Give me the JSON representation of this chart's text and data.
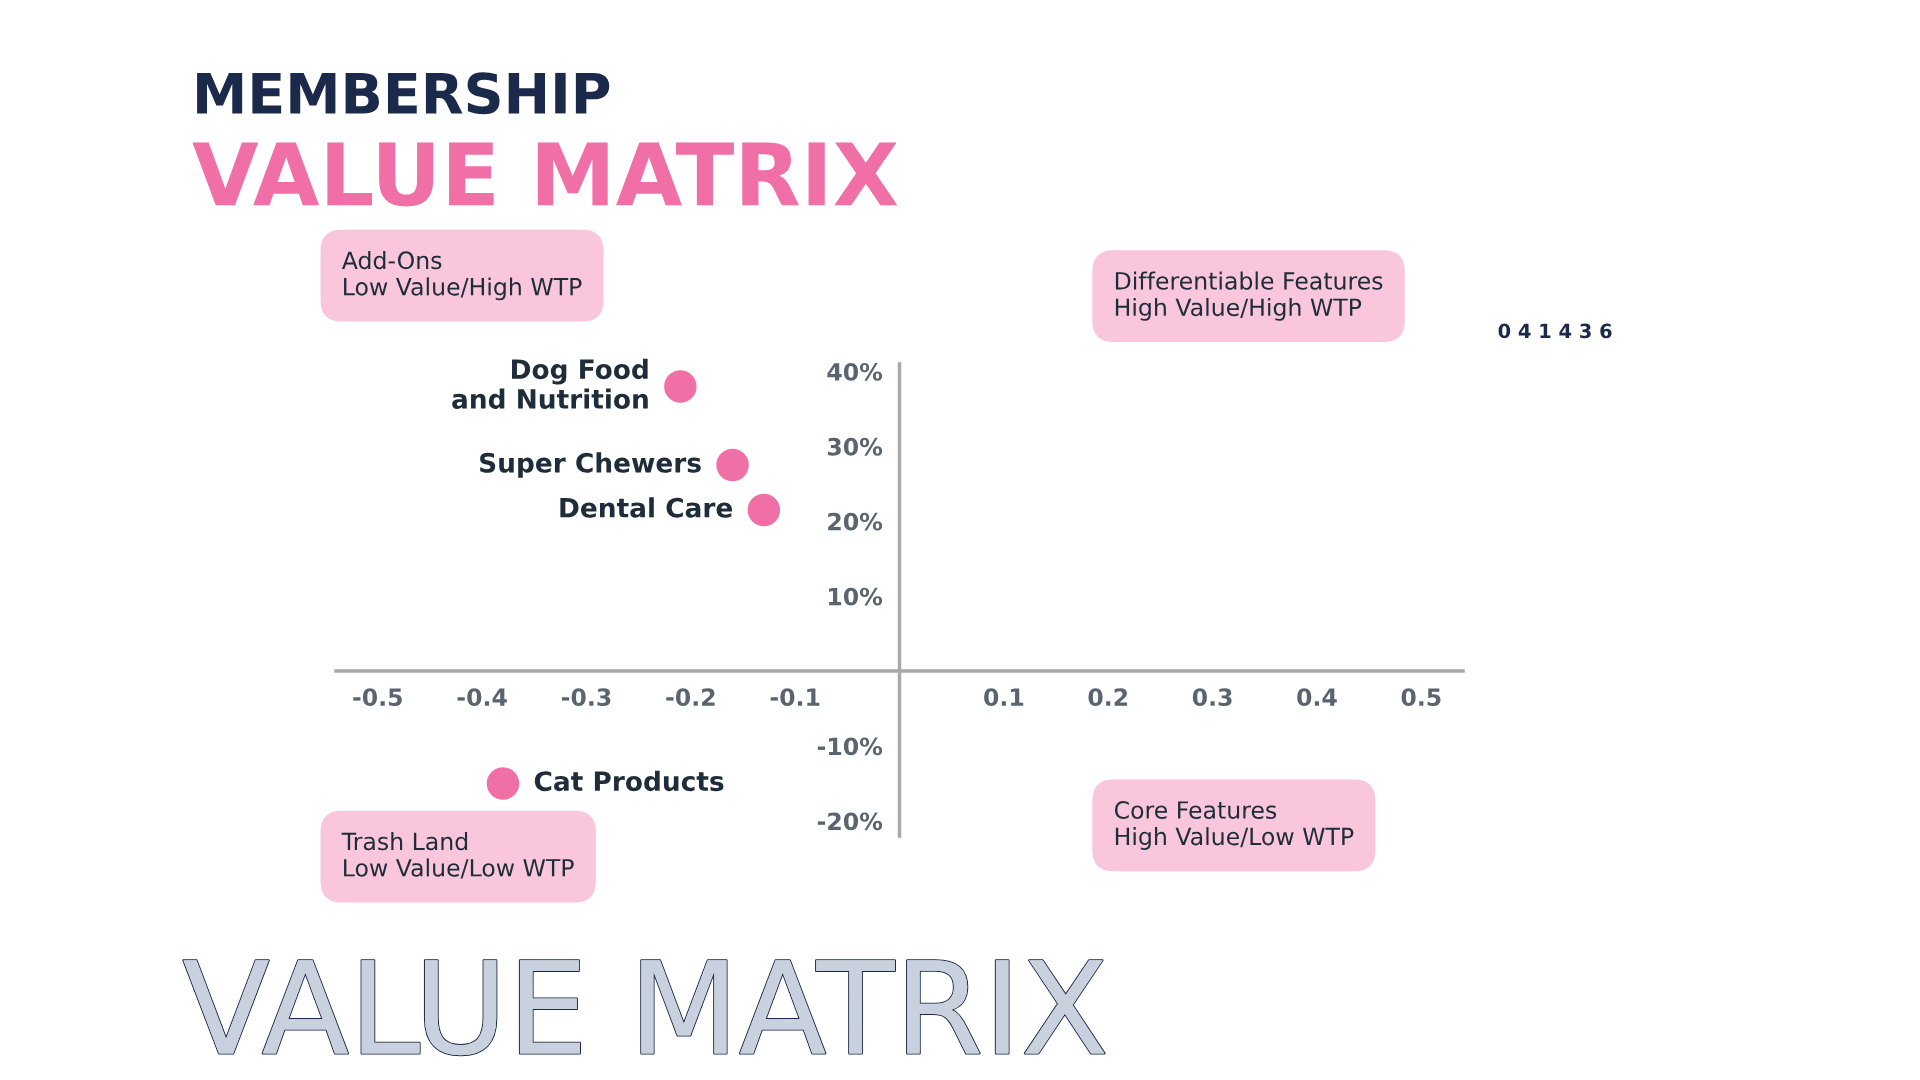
{
  "chart_data": {
    "type": "scatter",
    "title": "MEMBERSHIP",
    "subtitle": "VALUE MATRIX",
    "series": [
      {
        "name": "Dog Food\nand Nutrition",
        "color": "#f06fa6",
        "x": [
          -0.21
        ],
        "values": [
          38
        ]
      },
      {
        "name": "Super Chewers",
        "color": "#f06fa6",
        "x": [
          -0.16
        ],
        "values": [
          27.5
        ]
      },
      {
        "name": "Dental Care",
        "color": "#f06fa6",
        "x": [
          -0.13
        ],
        "values": [
          21.5
        ]
      },
      {
        "name": "Cat Products",
        "color": "#f06fa6",
        "x": [
          -0.38
        ],
        "values": [
          -15
        ]
      }
    ],
    "xlim": [
      -0.54,
      0.54
    ],
    "ylim": [
      -22,
      41
    ],
    "xticks": [
      -0.5,
      -0.4,
      -0.3,
      -0.2,
      -0.1,
      0.1,
      0.2,
      0.3,
      0.4,
      0.5
    ],
    "yticks": [
      {
        "value": 40,
        "label": "40%"
      },
      {
        "value": 30,
        "label": "30%"
      },
      {
        "value": 20,
        "label": "20%"
      },
      {
        "value": 10,
        "label": "10%"
      },
      {
        "value": -10,
        "label": "-10%"
      },
      {
        "value": -20,
        "label": "-20%"
      }
    ],
    "marker": "circle",
    "grid": false,
    "legend": false,
    "annotations": [
      "Add-Ons\nLow Value/High WTP",
      "Differentiable Features\nHigh Value/High WTP",
      "Trash Land\nLow Value/Low WTP",
      "Core Features\nHigh Value/Low WTP",
      "0 4 1 4 3 6",
      "VALUE MATRIX"
    ]
  }
}
